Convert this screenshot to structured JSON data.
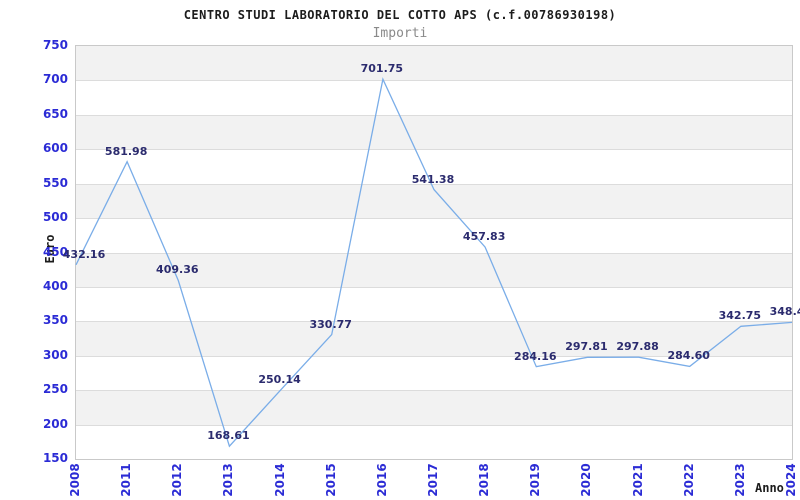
{
  "header": {
    "title": "CENTRO STUDI LABORATORIO DEL COTTO APS (c.f.00786930198)",
    "subtitle": "Importi"
  },
  "chart_data": {
    "type": "line",
    "title": "CENTRO STUDI LABORATORIO DEL COTTO APS (c.f.00786930198)",
    "subtitle": "Importi",
    "xlabel": "Anno",
    "ylabel": "Euro",
    "categories": [
      "2008",
      "2011",
      "2012",
      "2013",
      "2014",
      "2015",
      "2016",
      "2017",
      "2018",
      "2019",
      "2020",
      "2021",
      "2022",
      "2023",
      "2024"
    ],
    "values": [
      432.16,
      581.98,
      409.36,
      168.61,
      250.14,
      330.77,
      701.75,
      541.38,
      457.83,
      284.16,
      297.81,
      297.88,
      284.6,
      342.75,
      348.4
    ],
    "point_labels": [
      "432.16",
      "581.98",
      "409.36",
      "168.61",
      "250.14",
      "330.77",
      "701.75",
      "541.38",
      "457.83",
      "284.16",
      "297.81",
      "297.88",
      "284.60",
      "342.75",
      "348.4"
    ],
    "ylim": [
      150,
      750
    ],
    "yticks": [
      150,
      200,
      250,
      300,
      350,
      400,
      450,
      500,
      550,
      600,
      650,
      700,
      750
    ],
    "grid": true,
    "banding": "alternating horizontal 50-unit bands, gray from 750 downward",
    "legend_position": "none",
    "colors": {
      "line": "#7aade8",
      "tick_label": "#2b2bd5",
      "data_label": "#2b2b6e",
      "band": "#f2f2f2",
      "gridline": "#dcdcdc",
      "plot_border": "#c9c9c9",
      "title": "#1c1c1c",
      "subtitle": "#8a8a8a"
    }
  }
}
